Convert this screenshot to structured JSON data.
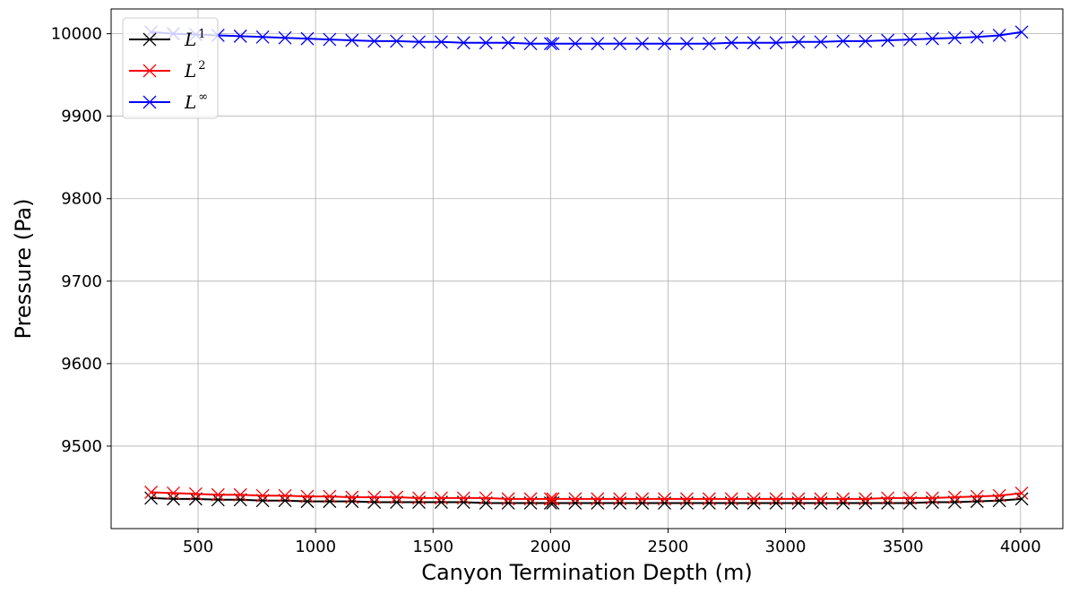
{
  "chart_data": {
    "type": "line",
    "title": "",
    "xlabel": "Canyon Termination Depth (m)",
    "ylabel": "Pressure (Pa)",
    "xlim": [
      130,
      4180
    ],
    "ylim": [
      9400,
      10030
    ],
    "xticks": [
      500,
      1000,
      1500,
      2000,
      2500,
      3000,
      3500,
      4000
    ],
    "yticks": [
      9500,
      9600,
      9700,
      9800,
      9900,
      10000
    ],
    "grid": true,
    "legend_position": "top-left",
    "marker": "x",
    "x": [
      300,
      395,
      490,
      585,
      680,
      775,
      870,
      965,
      1060,
      1155,
      1250,
      1345,
      1440,
      1535,
      1630,
      1725,
      1820,
      1915,
      2000,
      2010,
      2105,
      2200,
      2295,
      2390,
      2485,
      2580,
      2675,
      2770,
      2865,
      2960,
      3055,
      3150,
      3245,
      3340,
      3435,
      3530,
      3625,
      3720,
      3815,
      3910,
      4005
    ],
    "series": [
      {
        "name": "L",
        "name_sup": "1",
        "color": "#000000",
        "values": [
          9437,
          9436,
          9436,
          9435,
          9435,
          9434,
          9434,
          9433,
          9433,
          9433,
          9432,
          9432,
          9432,
          9432,
          9432,
          9431,
          9431,
          9431,
          9431,
          9431,
          9431,
          9431,
          9431,
          9431,
          9431,
          9431,
          9431,
          9431,
          9431,
          9431,
          9431,
          9431,
          9431,
          9431,
          9431,
          9431,
          9432,
          9432,
          9433,
          9434,
          9436
        ]
      },
      {
        "name": "L",
        "name_sup": "2",
        "color": "#ff0000",
        "values": [
          9444,
          9443,
          9442,
          9441,
          9441,
          9440,
          9440,
          9439,
          9439,
          9438,
          9438,
          9438,
          9437,
          9437,
          9437,
          9437,
          9436,
          9436,
          9436,
          9436,
          9436,
          9436,
          9436,
          9436,
          9436,
          9436,
          9436,
          9436,
          9436,
          9436,
          9436,
          9436,
          9436,
          9436,
          9437,
          9437,
          9437,
          9438,
          9439,
          9440,
          9443
        ]
      },
      {
        "name": "L",
        "name_sup": "∞",
        "color": "#0000ff",
        "values": [
          10002,
          10000,
          9999,
          9998,
          9997,
          9996,
          9995,
          9994,
          9993,
          9992,
          9991,
          9991,
          9990,
          9990,
          9989,
          9989,
          9989,
          9988,
          9988,
          9988,
          9988,
          9988,
          9988,
          9988,
          9988,
          9988,
          9988,
          9989,
          9989,
          9989,
          9990,
          9990,
          9991,
          9991,
          9992,
          9993,
          9994,
          9995,
          9996,
          9998,
          10002
        ]
      }
    ]
  }
}
